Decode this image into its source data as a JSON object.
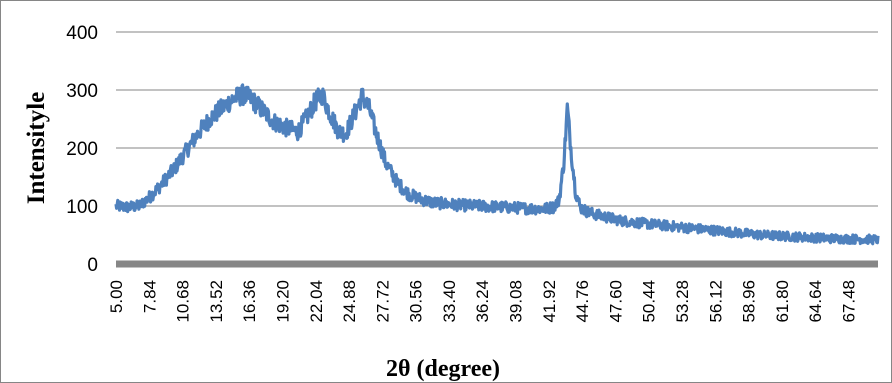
{
  "chart_data": {
    "type": "line",
    "xlabel": "2θ (degree)",
    "ylabel": "Intensityle",
    "xlim": [
      5.0,
      70.0
    ],
    "ylim": [
      0,
      400
    ],
    "yticks": [
      0,
      100,
      200,
      300,
      400
    ],
    "ytick_labels": [
      "0",
      "100",
      "200",
      "300",
      "400"
    ],
    "xtick_labels": [
      "5.00",
      "7.84",
      "10.68",
      "13.52",
      "16.36",
      "19.20",
      "22.04",
      "24.88",
      "27.72",
      "30.56",
      "33.40",
      "36.24",
      "39.08",
      "41.92",
      "44.76",
      "47.60",
      "50.44",
      "53.28",
      "56.12",
      "58.96",
      "61.80",
      "64.64",
      "67.48"
    ],
    "grid": "horizontal",
    "legend": "none",
    "series": [
      {
        "color": "#4f81bd",
        "noise_amplitude": 12,
        "x": [
          5.0,
          6.0,
          7.0,
          8.0,
          9.0,
          10.0,
          11.0,
          12.0,
          13.0,
          14.0,
          15.0,
          15.8,
          16.5,
          17.5,
          18.5,
          19.5,
          20.5,
          21.2,
          22.0,
          22.6,
          23.2,
          24.0,
          24.6,
          25.2,
          26.0,
          26.6,
          27.2,
          28.0,
          29.0,
          30.0,
          31.0,
          32.0,
          34.0,
          36.0,
          38.0,
          40.0,
          41.5,
          42.3,
          42.8,
          43.2,
          43.5,
          43.8,
          44.2,
          44.6,
          45.2,
          46.0,
          47.0,
          48.0,
          50.0,
          52.0,
          54.0,
          56.0,
          58.0,
          60.0,
          62.0,
          64.0,
          66.0,
          68.0,
          70.0
        ],
        "y": [
          100,
          98,
          100,
          118,
          140,
          165,
          195,
          225,
          250,
          268,
          285,
          292,
          285,
          265,
          245,
          235,
          228,
          250,
          280,
          292,
          262,
          228,
          225,
          252,
          290,
          268,
          225,
          175,
          140,
          120,
          112,
          106,
          102,
          100,
          98,
          96,
          95,
          98,
          110,
          175,
          270,
          200,
          125,
          98,
          90,
          85,
          80,
          75,
          70,
          66,
          62,
          58,
          54,
          50,
          48,
          46,
          44,
          43,
          42
        ]
      }
    ]
  }
}
